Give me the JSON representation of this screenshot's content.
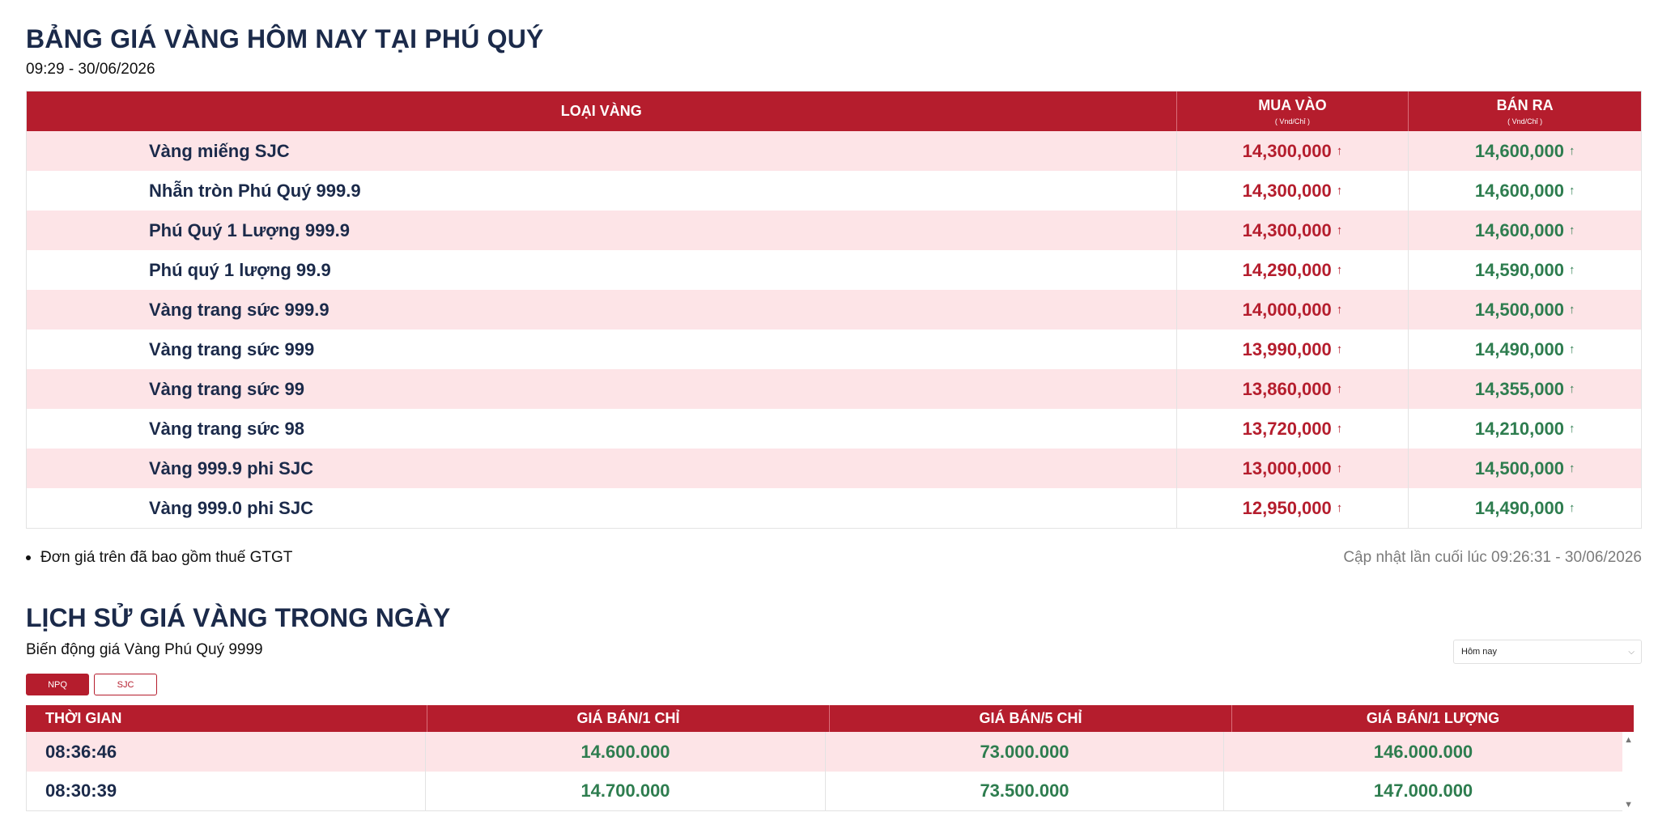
{
  "page": {
    "title": "BẢNG GIÁ VÀNG HÔM NAY TẠI PHÚ QUÝ",
    "datetime": "09:29 - 30/06/2026"
  },
  "price_table": {
    "headers": {
      "type": "LOẠI VÀNG",
      "buy": "MUA VÀO",
      "buy_unit": "( Vnd/Chỉ )",
      "sell": "BÁN RA",
      "sell_unit": "( Vnd/Chỉ )"
    },
    "rows": [
      {
        "name": "Vàng miếng SJC",
        "buy": "14,300,000",
        "sell": "14,600,000"
      },
      {
        "name": "Nhẫn tròn Phú Quý 999.9",
        "buy": "14,300,000",
        "sell": "14,600,000"
      },
      {
        "name": "Phú Quý 1 Lượng 999.9",
        "buy": "14,300,000",
        "sell": "14,600,000"
      },
      {
        "name": "Phú quý 1 lượng 99.9",
        "buy": "14,290,000",
        "sell": "14,590,000"
      },
      {
        "name": "Vàng trang sức 999.9",
        "buy": "14,000,000",
        "sell": "14,500,000"
      },
      {
        "name": "Vàng trang sức 999",
        "buy": "13,990,000",
        "sell": "14,490,000"
      },
      {
        "name": "Vàng trang sức 99",
        "buy": "13,860,000",
        "sell": "14,355,000"
      },
      {
        "name": "Vàng trang sức 98",
        "buy": "13,720,000",
        "sell": "14,210,000"
      },
      {
        "name": "Vàng 999.9 phi SJC",
        "buy": "13,000,000",
        "sell": "14,500,000"
      },
      {
        "name": "Vàng 999.0 phi SJC",
        "buy": "12,950,000",
        "sell": "14,490,000"
      }
    ],
    "trend_icon": "arrow-up-icon",
    "trend_glyph": "↑"
  },
  "footer": {
    "note": "Đơn giá trên đã bao gồm thuế GTGT",
    "updated": "Cập nhật lần cuối lúc 09:26:31 - 30/06/2026"
  },
  "history": {
    "title": "LỊCH SỬ GIÁ VÀNG TRONG NGÀY",
    "subtitle": "Biến động giá Vàng Phú Quý 9999",
    "period_select": "Hôm nay",
    "tabs": [
      {
        "label": "NPQ",
        "active": true
      },
      {
        "label": "SJC",
        "active": false
      }
    ],
    "headers": {
      "time": "THỜI GIAN",
      "per_chi": "GIÁ BÁN/1 CHỈ",
      "per_5chi": "GIÁ BÁN/5 CHỈ",
      "per_luong": "GIÁ BÁN/1 LƯỢNG"
    },
    "rows": [
      {
        "time": "08:36:46",
        "per_chi": "14.600.000",
        "per_5chi": "73.000.000",
        "per_luong": "146.000.000"
      },
      {
        "time": "08:30:39",
        "per_chi": "14.700.000",
        "per_5chi": "73.500.000",
        "per_luong": "147.000.000"
      }
    ]
  },
  "colors": {
    "header_red": "#b51d2d",
    "row_pink": "#fde4e7",
    "navy_text": "#1b2a4a",
    "buy_red": "#b51d2d",
    "sell_green": "#2e7d4f"
  }
}
